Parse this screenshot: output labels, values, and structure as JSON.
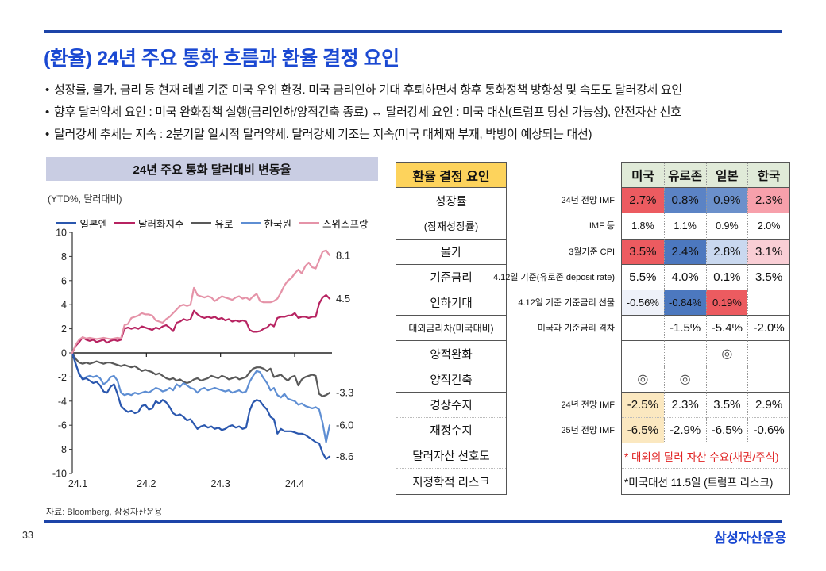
{
  "slide": {
    "title": "(환율) 24년 주요 통화 흐름과 환율 결정 요인",
    "bullets": [
      "성장률, 물가, 금리 등 현재 레벨 기준 미국 우위 환경. 미국 금리인하 기대 후퇴하면서 향후 통화정책 방향성 및 속도도 달러강세 요인",
      "향후 달러약세 요인 : 미국 완화정책 실행(금리인하/양적긴축  종료) ↔ 달러강세 요인 : 미국 대선(트럼프 당선 가능성), 안전자산 선호",
      "달러강세 추세는 지속 : 2분기말 일시적 달러약세. 달러강세 기조는 지속(미국 대체재 부재, 박빙이 예상되는 대선)"
    ],
    "page_number": "33",
    "logo": "삼성자산운용",
    "accent_blue": "#1b49d2",
    "rule_blue": "#1d44a8"
  },
  "chart_panel": {
    "header": "24년 주요 통화 달러대비 변동율",
    "unit_label": "(YTD%, 달러대비)",
    "source": "자료: Bloomberg, 삼성자산운용"
  },
  "chart_data": {
    "type": "line",
    "title": "24년 주요 통화 달러대비 변동율",
    "ylabel": "(YTD%, 달러대비)",
    "ylim": [
      -10,
      10
    ],
    "ytick_step": 2,
    "x_ticks": [
      "24.1",
      "24.2",
      "24.3",
      "24.4"
    ],
    "grid": false,
    "legend_position": "top",
    "series": [
      {
        "key": "jpy",
        "name": "일본엔",
        "color": "#2a57ae",
        "end_label": "-8.6",
        "values": [
          0,
          -0.9,
          -1.8,
          -2.2,
          -2.1,
          -2.3,
          -2.5,
          -2.4,
          -2.7,
          -3.2,
          -3.3,
          -2.8,
          -2.6,
          -3.4,
          -4.4,
          -4.7,
          -4.9,
          -4.8,
          -5.0,
          -4.9,
          -4.4,
          -4.3,
          -4.7,
          -4.6,
          -4.0,
          -4.2,
          -3.9,
          -4.1,
          -4.5,
          -5.0,
          -5.2,
          -5.1,
          -5.3,
          -5.6,
          -5.5,
          -5.9,
          -6.3,
          -6.1,
          -6.0,
          -6.2,
          -6.1,
          -6.3,
          -6.2,
          -6.4,
          -6.3,
          -6.1,
          -6.0,
          -6.2,
          -6.1,
          -6.3,
          -6.2,
          -4.8,
          -4.1,
          -3.9,
          -4.0,
          -4.4,
          -4.7,
          -5.3,
          -5.5,
          -6.7,
          -6.3,
          -6.5,
          -6.5,
          -6.5,
          -6.6,
          -6.7,
          -6.7,
          -6.8,
          -7.0,
          -7.2,
          -7.4,
          -7.5,
          -8.3,
          -8.8,
          -8.6
        ]
      },
      {
        "key": "dxy",
        "name": "달러화지수",
        "color": "#b72361",
        "end_label": "4.5",
        "values": [
          0,
          0.6,
          0.9,
          1.3,
          1.1,
          1.0,
          1.1,
          0.9,
          1.0,
          1.1,
          0.85,
          1.0,
          1.1,
          1.0,
          1.1,
          2.0,
          2.1,
          2.0,
          2.1,
          2.0,
          2.2,
          2.1,
          2.0,
          1.9,
          2.1,
          2.0,
          2.2,
          2.3,
          2.1,
          1.8,
          2.5,
          2.6,
          2.8,
          2.7,
          2.8,
          3.5,
          3.2,
          3.0,
          2.9,
          3.0,
          2.9,
          3.0,
          2.8,
          2.9,
          2.7,
          2.8,
          2.6,
          2.7,
          2.6,
          2.7,
          2.6,
          1.9,
          1.75,
          1.75,
          1.8,
          2.0,
          2.1,
          2.4,
          2.2,
          2.9,
          3.0,
          3.0,
          3.1,
          3.1,
          3.3,
          2.9,
          3.0,
          3.0,
          2.9,
          3.0,
          3.0,
          4.1,
          4.6,
          4.8,
          4.5
        ]
      },
      {
        "key": "eur",
        "name": "유로",
        "color": "#595959",
        "end_label": "-3.3",
        "values": [
          0,
          -0.5,
          -0.8,
          -0.9,
          -0.8,
          -0.9,
          -0.8,
          -0.7,
          -0.8,
          -0.9,
          -0.8,
          -0.8,
          -0.9,
          -1.0,
          -1.1,
          -1.0,
          -1.1,
          -1.2,
          -1.1,
          -1.3,
          -1.5,
          -1.4,
          -1.5,
          -1.6,
          -1.8,
          -1.7,
          -1.9,
          -2.1,
          -2.2,
          -2.1,
          -2.3,
          -2.2,
          -2.4,
          -2.5,
          -2.4,
          -2.2,
          -2.1,
          -2.3,
          -2.2,
          -2.1,
          -1.9,
          -2.0,
          -2.1,
          -1.9,
          -2.0,
          -2.2,
          -2.1,
          -2.0,
          -2.2,
          -2.1,
          -2.0,
          -1.6,
          -1.3,
          -1.2,
          -1.2,
          -1.3,
          -1.5,
          -1.3,
          -2.0,
          -1.9,
          -1.8,
          -2.1,
          -2.3,
          -2.0,
          -1.9,
          -2.7,
          -2.2,
          -2.0,
          -1.9,
          -1.8,
          -1.9,
          -3.4,
          -3.6,
          -3.5,
          -3.3
        ]
      },
      {
        "key": "krw",
        "name": "한국원",
        "color": "#5e8ed3",
        "end_label": "-6.0",
        "values": [
          0,
          -1.0,
          -1.7,
          -2.2,
          -2.0,
          -1.9,
          -2.0,
          -1.9,
          -2.1,
          -2.6,
          -2.4,
          -2.0,
          -1.9,
          -2.3,
          -3.3,
          -3.5,
          -3.4,
          -3.5,
          -3.3,
          -3.4,
          -3.3,
          -3.2,
          -3.3,
          -3.1,
          -2.9,
          -3.0,
          -3.2,
          -3.1,
          -2.9,
          -3.1,
          -2.6,
          -2.8,
          -2.5,
          -2.7,
          -2.9,
          -3.0,
          -3.3,
          -3.0,
          -2.9,
          -3.1,
          -3.0,
          -2.9,
          -3.0,
          -3.1,
          -3.2,
          -3.1,
          -3.3,
          -3.2,
          -3.1,
          -3.3,
          -3.2,
          -2.4,
          -1.9,
          -1.5,
          -1.6,
          -2.1,
          -2.5,
          -3.1,
          -2.9,
          -3.5,
          -3.7,
          -3.4,
          -3.8,
          -3.9,
          -4.0,
          -4.3,
          -4.2,
          -4.4,
          -4.5,
          -4.6,
          -4.5,
          -4.7,
          -5.8,
          -7.4,
          -6.0
        ]
      },
      {
        "key": "chf",
        "name": "스위스프랑",
        "color": "#e593a8",
        "end_label": "8.1",
        "values": [
          0,
          0.7,
          1.1,
          1.3,
          1.2,
          1.25,
          1.2,
          1.15,
          1.2,
          1.25,
          1.2,
          1.15,
          1.2,
          1.25,
          1.2,
          2.3,
          2.4,
          2.9,
          3.0,
          3.1,
          3.3,
          3.2,
          3.2,
          3.1,
          2.7,
          2.6,
          2.5,
          2.8,
          3.0,
          3.3,
          3.6,
          3.9,
          4.0,
          3.9,
          4.0,
          5.4,
          4.8,
          4.7,
          4.6,
          4.7,
          4.6,
          4.3,
          4.5,
          4.7,
          4.6,
          4.5,
          4.4,
          4.6,
          4.7,
          4.5,
          4.6,
          4.4,
          4.7,
          4.9,
          4.3,
          4.2,
          4.2,
          4.2,
          4.3,
          4.5,
          5.0,
          5.6,
          6.0,
          6.2,
          6.6,
          6.9,
          6.6,
          7.2,
          7.5,
          7.1,
          7.0,
          7.7,
          8.4,
          8.5,
          8.1
        ]
      }
    ]
  },
  "table": {
    "factor_header": "환율 결정 요인",
    "countries": [
      "미국",
      "유로존",
      "일본",
      "한국"
    ],
    "header_bg": "#e0ead8",
    "factor_header_bg": "#fdd35c",
    "rows": [
      {
        "factor": "성장률",
        "metric": "24년 전망 IMF",
        "values": [
          "2.7%",
          "0.8%",
          "0.9%",
          "2.3%"
        ],
        "bg": [
          "#ec5b60",
          "#5b83c5",
          "#6b90cb",
          "#f7a0ab"
        ],
        "size": "lg",
        "sep": "thin"
      },
      {
        "factor": "(잠재성장률)",
        "metric": "IMF 등",
        "values": [
          "1.8%",
          "1.1%",
          "0.9%",
          "2.0%"
        ],
        "bg": null,
        "size": "sm",
        "sep": "solid"
      },
      {
        "factor": "물가",
        "metric": "3월기준 CPI",
        "values": [
          "3.5%",
          "2.4%",
          "2.8%",
          "3.1%"
        ],
        "bg": [
          "#ec5b60",
          "#4c78bf",
          "#c9d8ef",
          "#f9ced5"
        ],
        "size": "lg",
        "sep": "solid"
      },
      {
        "factor": "기준금리",
        "metric": "4.12일 기준(유로존 deposit rate)",
        "values": [
          "5.5%",
          "4.0%",
          "0.1%",
          "3.5%"
        ],
        "bg": null,
        "size": "lg",
        "sep": "none"
      },
      {
        "factor": "인하기대",
        "metric": "4.12일 기준 기준금리 선물",
        "values": [
          "-0.56%",
          "-0.84%",
          "0.19%",
          ""
        ],
        "bg": [
          "#eef1f9",
          "#4c78bf",
          "#ec5b60",
          null
        ],
        "size": "md",
        "sep": "solid"
      },
      {
        "factor": "대외금리차(미국대비)",
        "metric": "미국과 기준금리 격차",
        "values": [
          "",
          "-1.5%",
          "-5.4%",
          "-2.0%"
        ],
        "bg": null,
        "size": "lg",
        "sep": "solid",
        "factor_small": true
      },
      {
        "factor": "양적완화",
        "metric": "",
        "values": [
          "",
          "",
          "◎",
          ""
        ],
        "bg": null,
        "size": "lg",
        "sep": "none"
      },
      {
        "factor": "양적긴축",
        "metric": "",
        "values": [
          "◎",
          "◎",
          "",
          ""
        ],
        "bg": null,
        "size": "lg",
        "sep": "solid"
      },
      {
        "factor": "경상수지",
        "metric": "24년 전망 IMF",
        "values": [
          "-2.5%",
          "2.3%",
          "3.5%",
          "2.9%"
        ],
        "bg": [
          "#fbe8c0",
          null,
          null,
          null
        ],
        "size": "lg",
        "sep": "dotted"
      },
      {
        "factor": "재정수지",
        "metric": "25년 전망 IMF",
        "values": [
          "-6.5%",
          "-2.9%",
          "-6.5%",
          "-0.6%"
        ],
        "bg": [
          "#fbe8c0",
          null,
          null,
          null
        ],
        "size": "lg",
        "sep": "dotted"
      },
      {
        "factor": "달러자산 선호도",
        "metric": "",
        "annotation": {
          "text": "* 대외의 달러 자산 수요(채권/주식)",
          "color": "#e02222"
        },
        "sep": "dotted"
      },
      {
        "factor": "지정학적 리스크",
        "metric": "",
        "annotation": {
          "text": "*미국대선 11.5일 (트럼프 리스크)",
          "color": "#111111"
        },
        "sep": "none"
      }
    ]
  }
}
